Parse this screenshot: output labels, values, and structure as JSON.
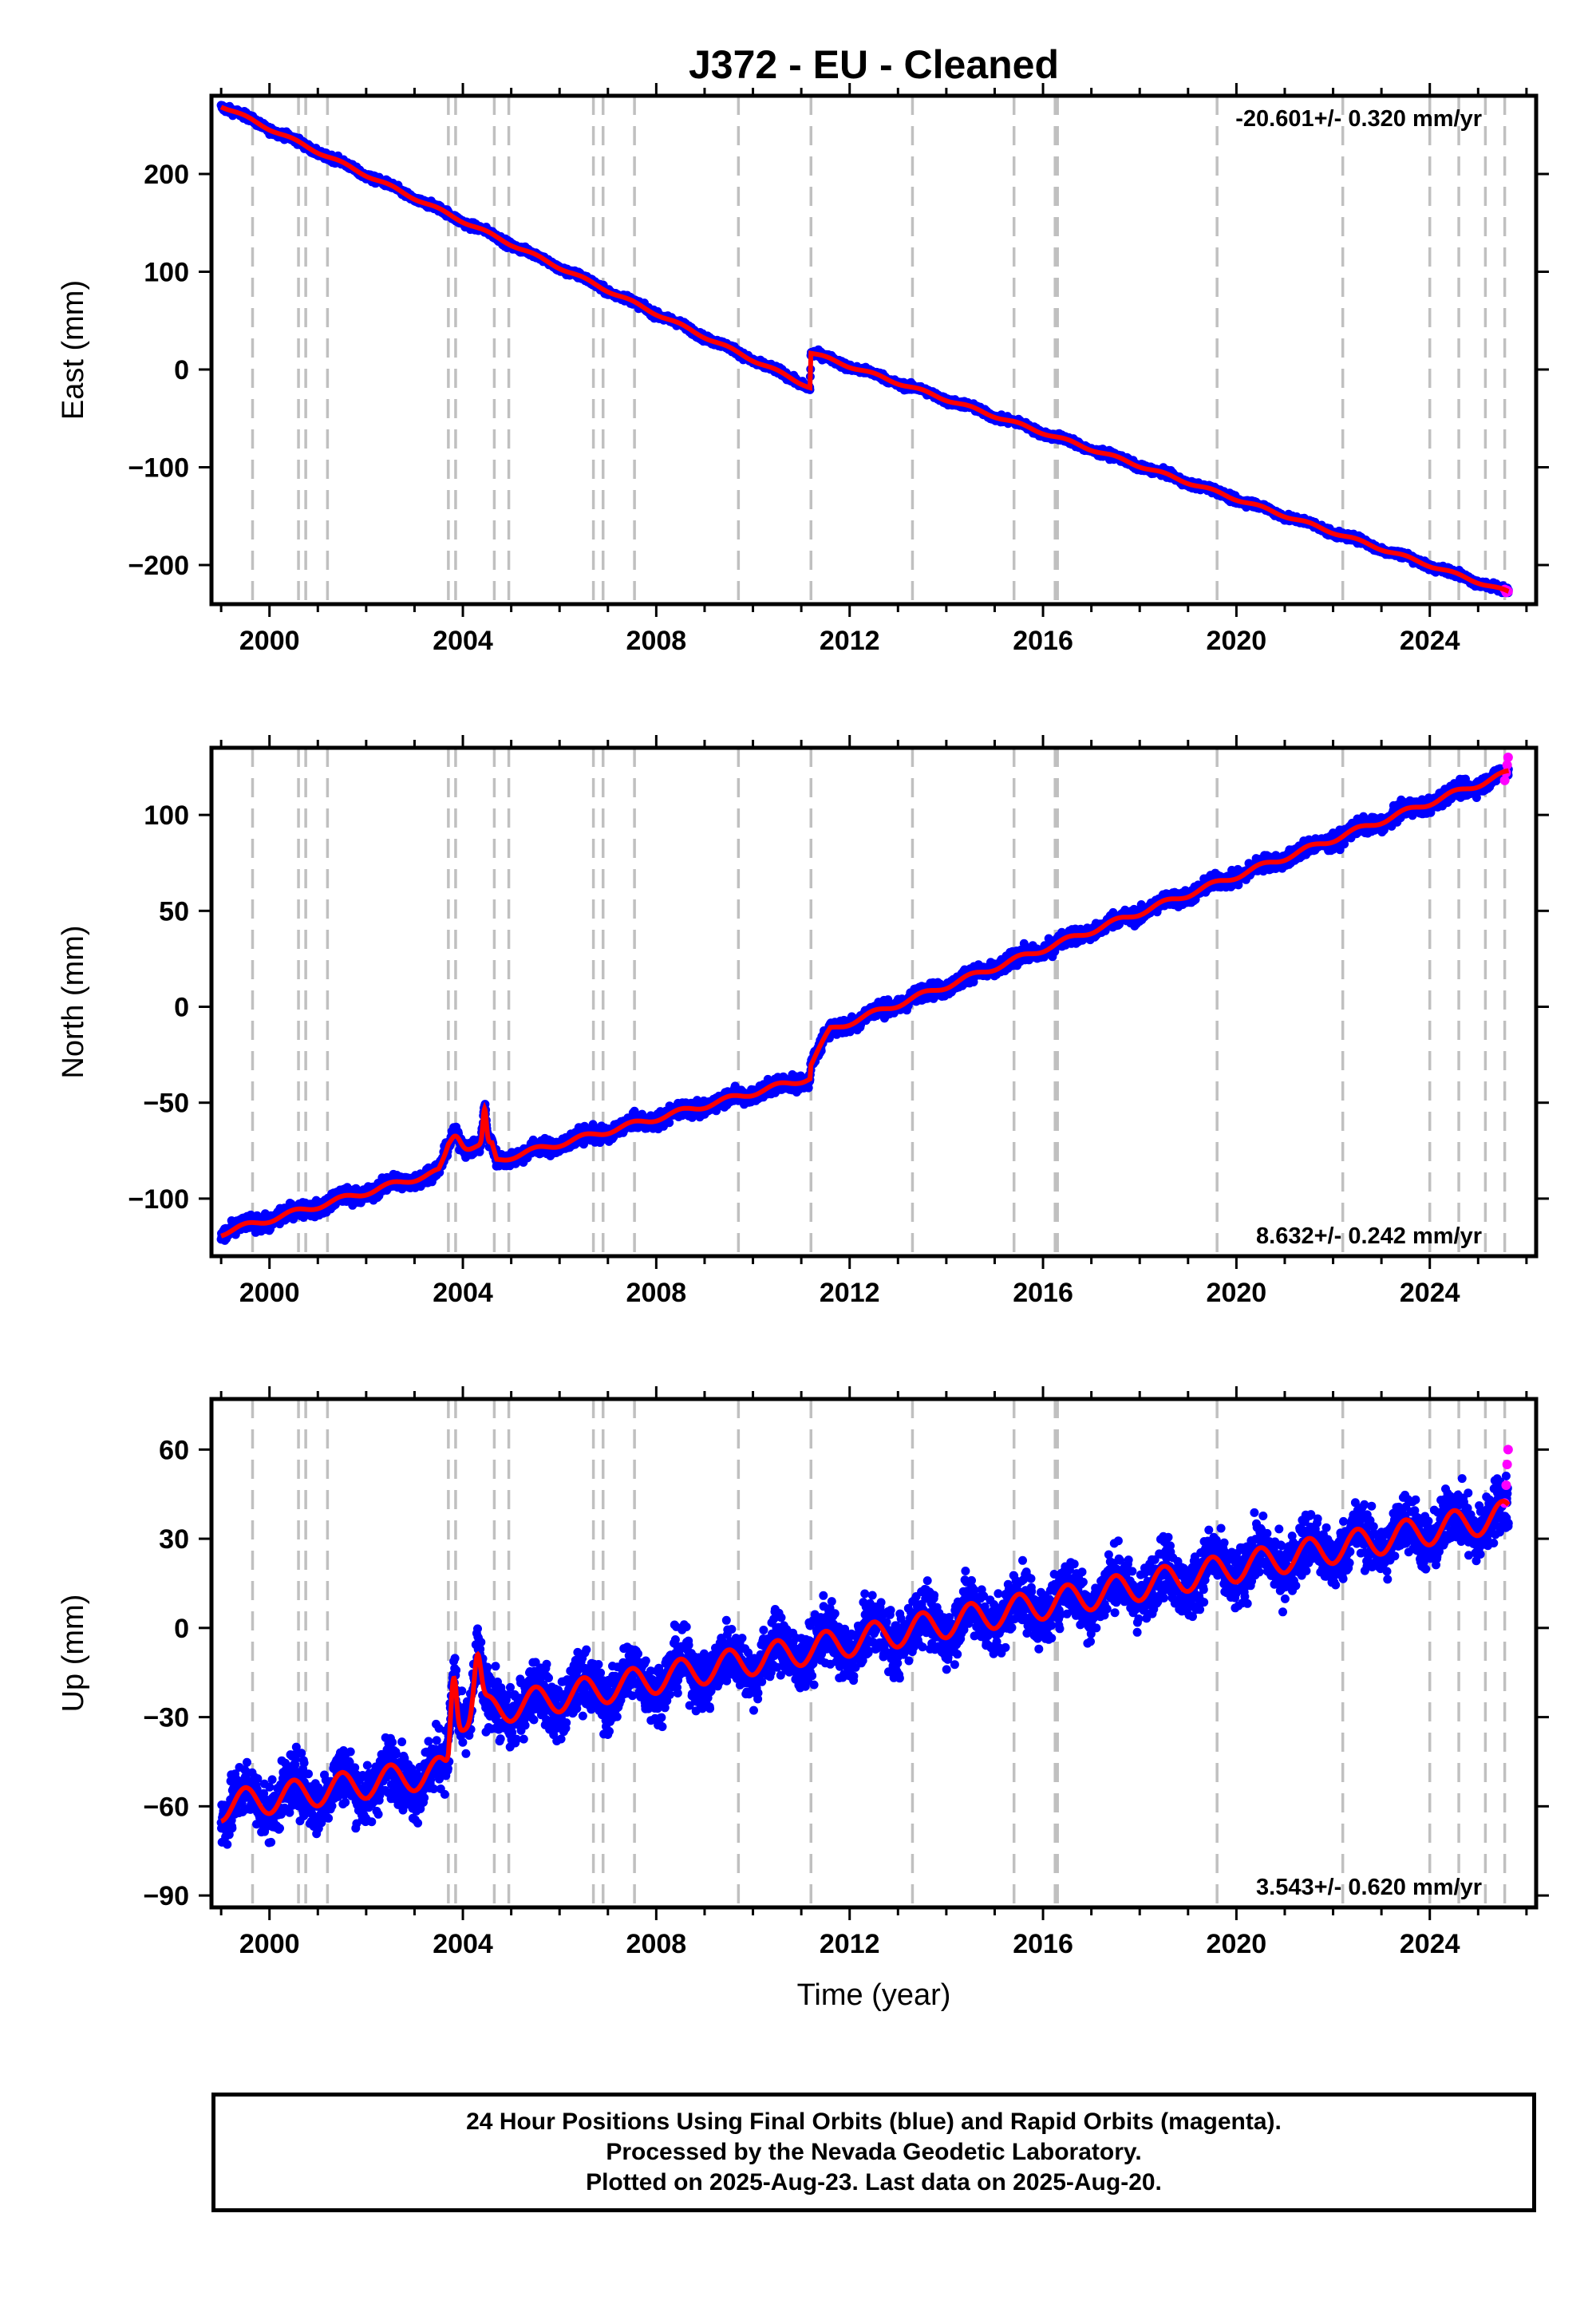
{
  "title": "J372  - EU - Cleaned",
  "xlabel": "Time (year)",
  "colors": {
    "final_orbits": "#0000ff",
    "rapid_orbits": "#ff00ff",
    "model": "#ff0000",
    "steps": "#c0c0c0"
  },
  "footer": {
    "line1": "24 Hour Positions Using Final Orbits (blue) and Rapid Orbits (magenta).",
    "line2": "Processed by the Nevada Geodetic Laboratory.",
    "line3": "Plotted on 2025-Aug-23. Last data on 2025-Aug-20."
  },
  "chart_data": [
    {
      "type": "scatter",
      "component": "east",
      "ylabel": "East (mm)",
      "rate_label": "-20.601+/- 0.320 mm/yr",
      "rate_position": "top-right",
      "xlim": [
        1998.8,
        2026.2
      ],
      "ylim": [
        -240,
        280
      ],
      "xticks": [
        2000,
        2004,
        2008,
        2012,
        2016,
        2020,
        2024
      ],
      "yticks": [
        -200,
        -100,
        0,
        100,
        200
      ],
      "ytick_labels": [
        "−200",
        "−100",
        "0",
        "100",
        "200"
      ],
      "step_epochs": [
        1999.65,
        2000.6,
        2000.75,
        2001.2,
        2003.7,
        2003.85,
        2004.65,
        2004.95,
        2006.7,
        2006.9,
        2007.55,
        2009.7,
        2011.2,
        2013.3,
        2015.4,
        2016.25,
        2016.3,
        2019.6,
        2022.2,
        2024.0,
        2024.6,
        2025.15,
        2025.55
      ],
      "trend": {
        "x": [
          1999.0,
          2011.18,
          2011.2,
          2025.63
        ],
        "y": [
          270,
          -18,
          17,
          -228
        ]
      },
      "seasonal": {
        "amplitude": 1.5,
        "scatter": 2.5
      },
      "bumps": [],
      "rapid_points": {
        "x": [
          2025.55,
          2025.58,
          2025.6,
          2025.62
        ],
        "y": [
          -225,
          -228,
          -226,
          -227
        ]
      }
    },
    {
      "type": "scatter",
      "component": "north",
      "ylabel": "North (mm)",
      "rate_label": "8.632+/- 0.242 mm/yr",
      "rate_position": "bottom-right",
      "xlim": [
        1998.8,
        2026.2
      ],
      "ylim": [
        -130,
        135
      ],
      "xticks": [
        2000,
        2004,
        2008,
        2012,
        2016,
        2020,
        2024
      ],
      "yticks": [
        -100,
        -50,
        0,
        50,
        100
      ],
      "ytick_labels": [
        "−100",
        "−50",
        "0",
        "50",
        "100"
      ],
      "step_epochs": [
        1999.65,
        2000.6,
        2000.75,
        2001.2,
        2003.7,
        2003.85,
        2004.65,
        2004.95,
        2006.7,
        2006.9,
        2007.55,
        2009.7,
        2011.2,
        2013.3,
        2015.4,
        2016.25,
        2016.3,
        2019.6,
        2022.2,
        2024.0,
        2024.6,
        2025.15,
        2025.55
      ],
      "trend": {
        "x": [
          1999.0,
          2003.5,
          2003.7,
          2004.6,
          2004.7,
          2011.18,
          2011.2,
          2011.6,
          2025.63
        ],
        "y": [
          -118,
          -86,
          -75,
          -72,
          -80,
          -37,
          -30,
          -12,
          122
        ]
      },
      "seasonal": {
        "amplitude": 1.5,
        "scatter": 2.8
      },
      "bumps": [
        {
          "center": 2003.85,
          "width": 0.15,
          "height": 8
        },
        {
          "center": 2004.45,
          "width": 0.05,
          "height": 18
        }
      ],
      "rapid_points": {
        "x": [
          2025.55,
          2025.58,
          2025.6,
          2025.62
        ],
        "y": [
          118,
          122,
          126,
          130
        ]
      }
    },
    {
      "type": "scatter",
      "component": "up",
      "ylabel": "Up (mm)",
      "rate_label": "3.543+/- 0.620 mm/yr",
      "rate_position": "bottom-right",
      "xlim": [
        1998.8,
        2026.2
      ],
      "ylim": [
        -94,
        77
      ],
      "xticks": [
        2000,
        2004,
        2008,
        2012,
        2016,
        2020,
        2024
      ],
      "yticks": [
        -90,
        -60,
        -30,
        0,
        30,
        60
      ],
      "ytick_labels": [
        "−90",
        "−60",
        "−30",
        "0",
        "30",
        "60"
      ],
      "step_epochs": [
        1999.65,
        2000.6,
        2000.75,
        2001.2,
        2003.7,
        2003.85,
        2004.65,
        2004.95,
        2006.7,
        2006.9,
        2007.55,
        2009.7,
        2011.2,
        2013.3,
        2015.4,
        2016.25,
        2016.3,
        2019.6,
        2022.2,
        2024.0,
        2024.6,
        2025.15,
        2025.55
      ],
      "trend": {
        "x": [
          1999.0,
          2003.7,
          2003.85,
          2025.63
        ],
        "y": [
          -60,
          -48,
          -30,
          38
        ]
      },
      "seasonal": {
        "amplitude": 5,
        "scatter": 7
      },
      "bumps": [
        {
          "center": 2003.8,
          "width": 0.08,
          "height": 20
        },
        {
          "center": 2004.3,
          "width": 0.1,
          "height": 18
        }
      ],
      "rapid_points": {
        "x": [
          2025.55,
          2025.58,
          2025.6,
          2025.62
        ],
        "y": [
          42,
          48,
          55,
          60
        ]
      }
    }
  ]
}
